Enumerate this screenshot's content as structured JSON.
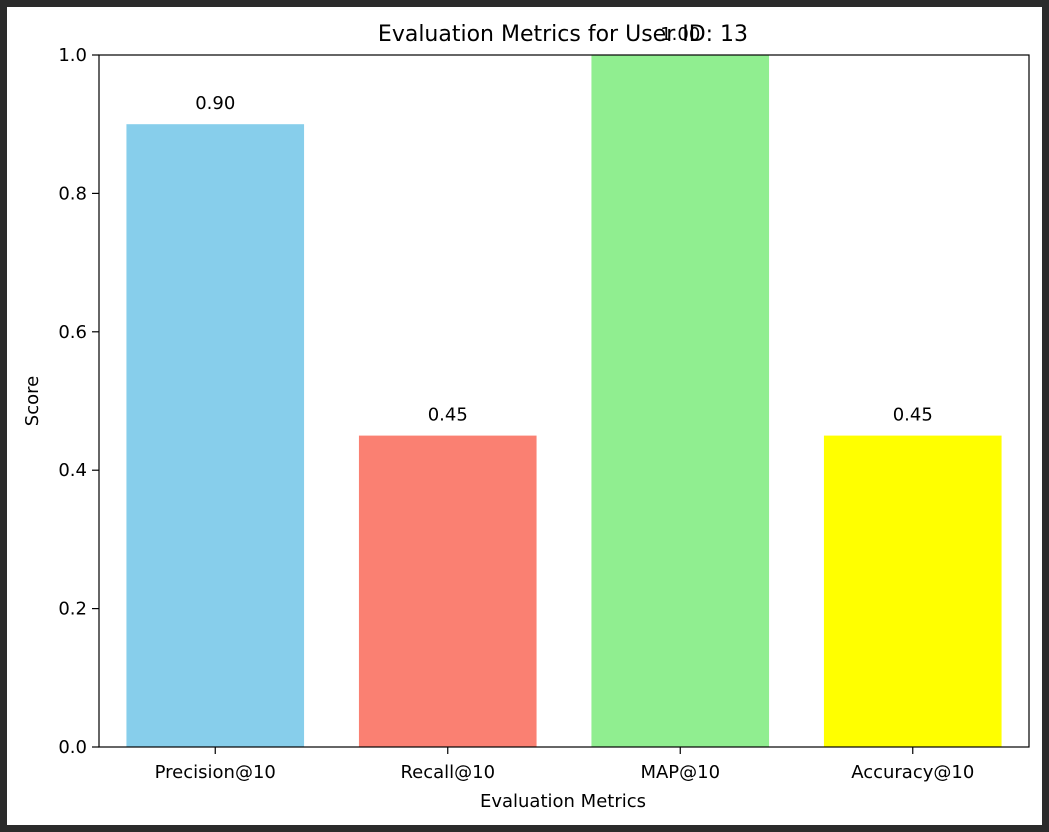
{
  "chart_data": {
    "type": "bar",
    "title": "Evaluation Metrics for User ID: 13",
    "xlabel": "Evaluation Metrics",
    "ylabel": "Score",
    "categories": [
      "Precision@10",
      "Recall@10",
      "MAP@10",
      "Accuracy@10"
    ],
    "values": [
      0.9,
      0.45,
      1.0,
      0.45
    ],
    "value_labels": [
      "0.90",
      "0.45",
      "1.00",
      "0.45"
    ],
    "colors": [
      "#87ceeb",
      "#fa8072",
      "#90ee90",
      "#ffff00"
    ],
    "ylim": [
      0,
      1.0
    ],
    "yticks": [
      0.0,
      0.2,
      0.4,
      0.6,
      0.8,
      1.0
    ],
    "ytick_labels": [
      "0.0",
      "0.2",
      "0.4",
      "0.6",
      "0.8",
      "1.0"
    ],
    "grid": false,
    "legend": "none"
  }
}
